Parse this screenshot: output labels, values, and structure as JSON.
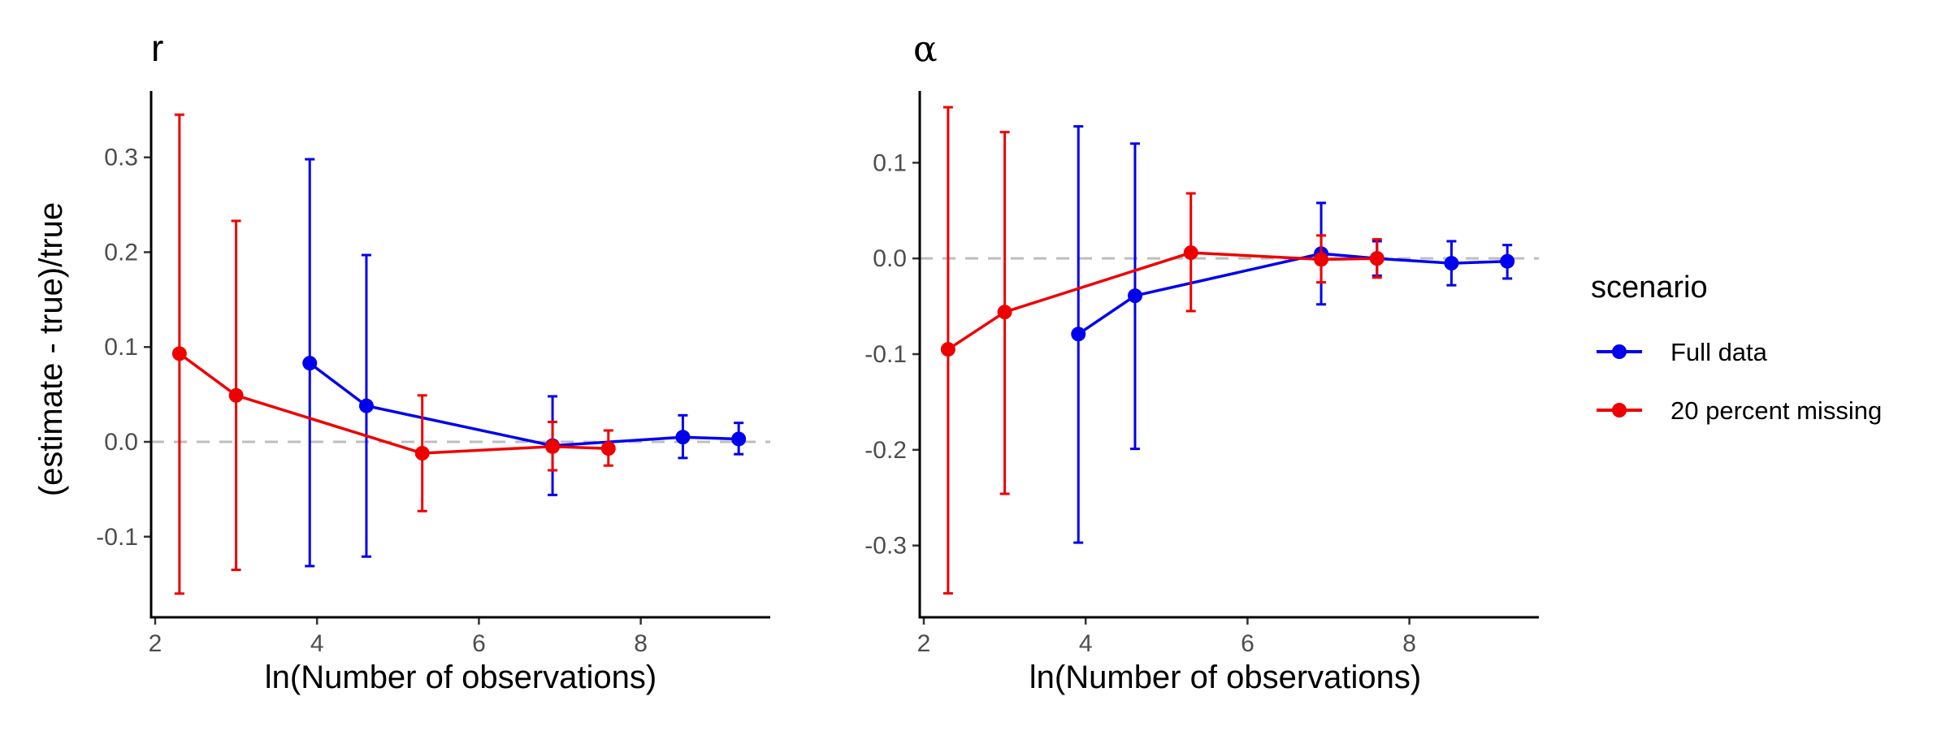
{
  "chart_data": [
    {
      "type": "line",
      "title": "r",
      "xlabel": "ln(Number of observations)",
      "ylabel": "(estimate - true)/true",
      "xlim": [
        1.95,
        9.6
      ],
      "ylim": [
        -0.185,
        0.37
      ],
      "x_ticks": [
        2,
        4,
        6,
        8
      ],
      "x_tick_labels": [
        "2",
        "4",
        "6",
        "8"
      ],
      "y_ticks": [
        -0.1,
        0.0,
        0.1,
        0.2,
        0.3
      ],
      "y_tick_labels": [
        "-0.1",
        "0.0",
        "0.1",
        "0.2",
        "0.3"
      ],
      "reference_line": 0,
      "series": [
        {
          "name": "Full data",
          "color": "#0000ee",
          "x": [
            3.91,
            4.61,
            6.91,
            8.52,
            9.21
          ],
          "y": [
            0.083,
            0.038,
            -0.004,
            0.005,
            0.003
          ],
          "lower": [
            -0.131,
            -0.121,
            -0.056,
            -0.017,
            -0.013
          ],
          "upper": [
            0.298,
            0.197,
            0.048,
            0.028,
            0.02
          ]
        },
        {
          "name": "20 percent missing",
          "color": "#ee0000",
          "x": [
            2.3,
            3.0,
            5.3,
            6.91,
            7.6
          ],
          "y": [
            0.093,
            0.049,
            -0.012,
            -0.005,
            -0.007
          ],
          "lower": [
            -0.16,
            -0.135,
            -0.073,
            -0.03,
            -0.025
          ],
          "upper": [
            0.345,
            0.233,
            0.049,
            0.021,
            0.012
          ]
        }
      ]
    },
    {
      "type": "line",
      "title": "α",
      "xlabel": "ln(Number of observations)",
      "ylabel": "",
      "xlim": [
        1.95,
        9.6
      ],
      "ylim": [
        -0.375,
        0.175
      ],
      "x_ticks": [
        2,
        4,
        6,
        8
      ],
      "x_tick_labels": [
        "2",
        "4",
        "6",
        "8"
      ],
      "y_ticks": [
        -0.3,
        -0.2,
        -0.1,
        0.0,
        0.1
      ],
      "y_tick_labels": [
        "-0.3",
        "-0.2",
        "-0.1",
        "0.0",
        "0.1"
      ],
      "reference_line": 0,
      "series": [
        {
          "name": "Full data",
          "color": "#0000ee",
          "x": [
            3.91,
            4.61,
            6.91,
            7.6,
            8.52,
            9.21
          ],
          "y": [
            -0.079,
            -0.039,
            0.005,
            0.0,
            -0.005,
            -0.003
          ],
          "lower": [
            -0.297,
            -0.199,
            -0.048,
            -0.018,
            -0.028,
            -0.021
          ],
          "upper": [
            0.138,
            0.12,
            0.058,
            0.018,
            0.018,
            0.014
          ]
        },
        {
          "name": "20 percent missing",
          "color": "#ee0000",
          "x": [
            2.3,
            3.0,
            5.3,
            6.91,
            7.6
          ],
          "y": [
            -0.095,
            -0.056,
            0.006,
            -0.001,
            0.0
          ],
          "lower": [
            -0.35,
            -0.246,
            -0.055,
            -0.025,
            -0.02
          ],
          "upper": [
            0.158,
            0.132,
            0.068,
            0.024,
            0.02
          ]
        }
      ]
    }
  ],
  "legend": {
    "title": "scenario",
    "position": "right",
    "items": [
      {
        "label": "Full data",
        "color": "#0000ee"
      },
      {
        "label": "20 percent missing",
        "color": "#ee0000"
      }
    ]
  }
}
